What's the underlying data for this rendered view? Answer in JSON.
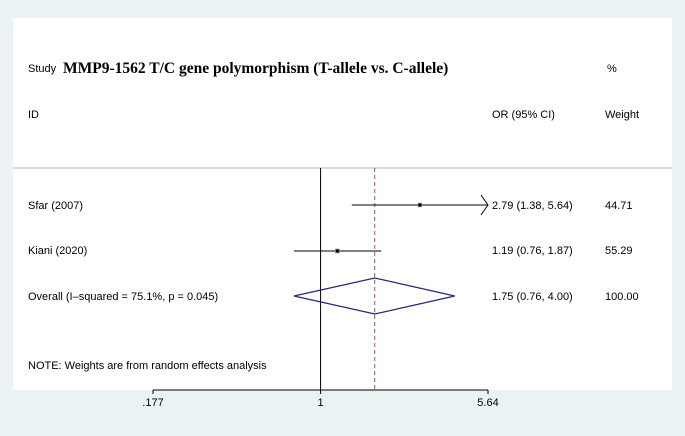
{
  "chart_data": {
    "type": "forest",
    "title": "MMP9-1562 T/C gene polymorphism (T-allele vs. C-allele)",
    "column_headers": {
      "study_top": "Study",
      "study_bottom": "ID",
      "estimate_bottom": "OR (95% CI)",
      "weight_top": "%",
      "weight_bottom": "Weight"
    },
    "x_scale": "log",
    "null_value": 1,
    "xlim": [
      0.177,
      5.64
    ],
    "x_ticks": [
      {
        "value": 0.177,
        "label": ".177"
      },
      {
        "value": 1,
        "label": "1"
      },
      {
        "value": 5.64,
        "label": "5.64"
      }
    ],
    "studies": [
      {
        "label": "Sfar  (2007)",
        "or": 2.79,
        "lower": 1.38,
        "upper": 5.64,
        "ci_text": "2.79 (1.38, 5.64)",
        "weight": "44.71",
        "clipped_upper": true
      },
      {
        "label": "Kiani (2020)",
        "or": 1.19,
        "lower": 0.76,
        "upper": 1.87,
        "ci_text": "1.19 (0.76, 1.87)",
        "weight": "55.29",
        "clipped_upper": false
      }
    ],
    "overall": {
      "label": "Overall  (I–squared = 75.1%, p = 0.045)",
      "or": 1.75,
      "lower": 0.76,
      "upper": 4.0,
      "ci_text": "1.75 (0.76, 4.00)",
      "weight": "100.00"
    },
    "note": "NOTE: Weights are from random effects analysis",
    "colors": {
      "background": "#eaf2f3",
      "panel": "#ffffff",
      "diamond": "#1f2a78",
      "reference_line": "#a0565e",
      "lines": "#000000"
    }
  }
}
